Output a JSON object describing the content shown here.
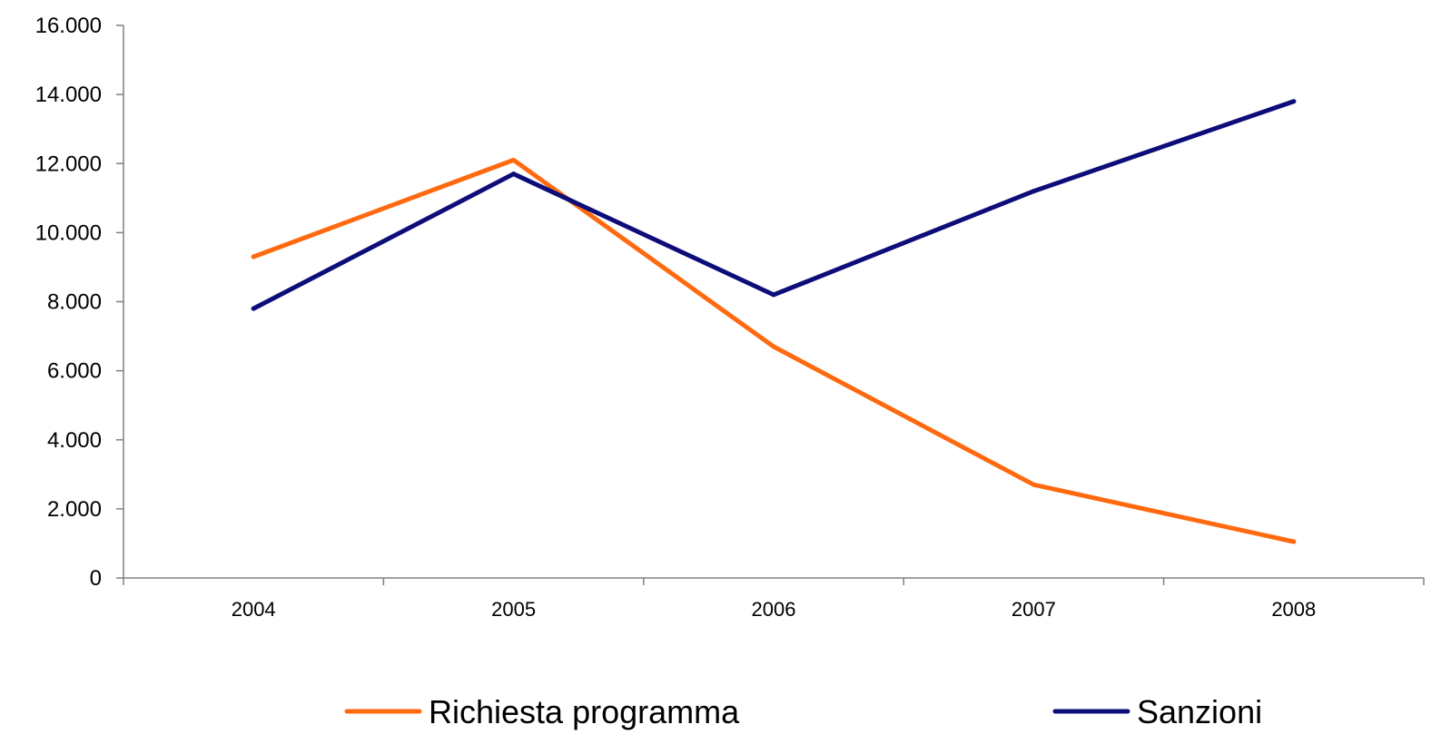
{
  "chart_data": {
    "type": "line",
    "title": "",
    "xlabel": "",
    "ylabel": "",
    "categories": [
      "2004",
      "2005",
      "2006",
      "2007",
      "2008"
    ],
    "ylim": [
      0,
      16000
    ],
    "yticks": [
      0,
      2000,
      4000,
      6000,
      8000,
      10000,
      12000,
      14000,
      16000
    ],
    "ytick_labels": [
      "0",
      "2.000",
      "4.000",
      "6.000",
      "8.000",
      "10.000",
      "12.000",
      "14.000",
      "16.000"
    ],
    "grid": false,
    "legend_position": "bottom",
    "series": [
      {
        "name": "Richiesta programma",
        "color": "#FF6A10",
        "values": [
          9300,
          12100,
          6700,
          2700,
          1050
        ]
      },
      {
        "name": "Sanzioni",
        "color": "#0D0D7A",
        "values": [
          7800,
          11700,
          8200,
          11200,
          13800
        ]
      }
    ]
  }
}
